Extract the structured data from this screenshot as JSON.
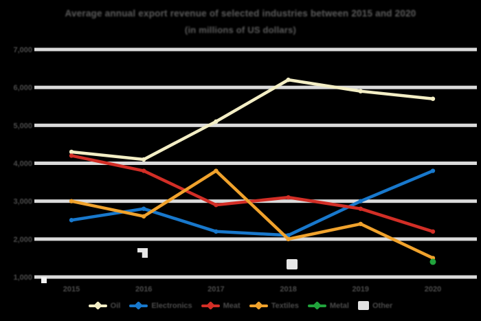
{
  "title": {
    "line1": "Average annual export revenue of selected industries between 2015 and 2020",
    "line2": "(in millions of US dollars)"
  },
  "colors": {
    "background": "#000000",
    "gridline": "#dadada",
    "title_text": "#5d5d5d",
    "tick_text": "#4a4a4a",
    "legend_text": "#4a4a4a",
    "watermark": "#e6e6e6",
    "series_cream": "#f3eec5",
    "series_blue": "#1878cc",
    "series_red": "#d22e26",
    "series_orange": "#f0a22c",
    "series_green": "#21a33c",
    "series_gray": "#e2e2e2"
  },
  "chart_data": {
    "type": "line",
    "x": [
      "2015",
      "2016",
      "2017",
      "2018",
      "2019",
      "2020"
    ],
    "series": [
      {
        "name": "Oil",
        "color": "#f3eec5",
        "swatch": "line",
        "values": [
          4300,
          4100,
          5100,
          6200,
          5900,
          5700
        ]
      },
      {
        "name": "Electronics",
        "color": "#1878cc",
        "swatch": "line",
        "values": [
          2500,
          2800,
          2200,
          2100,
          3000,
          3800
        ]
      },
      {
        "name": "Meat",
        "color": "#d22e26",
        "swatch": "line",
        "values": [
          4200,
          3800,
          2900,
          3100,
          2800,
          2200
        ]
      },
      {
        "name": "Textiles",
        "color": "#f0a22c",
        "swatch": "line",
        "values": [
          3000,
          2600,
          3800,
          2000,
          2400,
          1500
        ]
      },
      {
        "name": "Metal",
        "color": "#21a33c",
        "swatch": "line",
        "values": [
          null,
          null,
          null,
          null,
          null,
          1400
        ]
      },
      {
        "name": "Other",
        "color": "#e2e2e2",
        "swatch": "box",
        "values": null
      }
    ],
    "yticks": [
      "7,000",
      "6,000",
      "5,000",
      "4,000",
      "3,000",
      "2,000",
      "1,000"
    ],
    "ylim": [
      1000,
      7000
    ],
    "grid": true,
    "legend_position": "bottom",
    "xlabel": "",
    "ylabel": ""
  }
}
